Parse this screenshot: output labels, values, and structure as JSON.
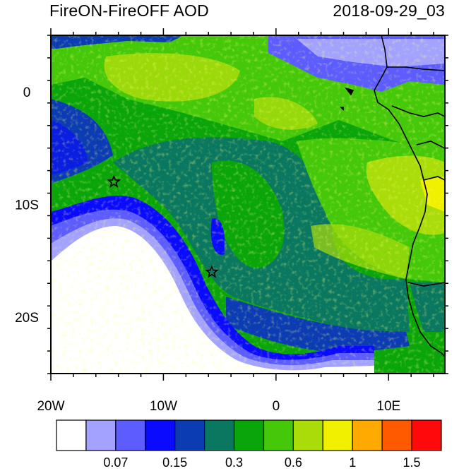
{
  "title": "FireON-FireOFF AOD",
  "datetime": "2018-09-29_03",
  "axes": {
    "x_ticks": [
      {
        "label": "20W",
        "lon": -20
      },
      {
        "label": "10W",
        "lon": -10
      },
      {
        "label": "0",
        "lon": 0
      },
      {
        "label": "10E",
        "lon": 10
      }
    ],
    "y_ticks": [
      {
        "label": "0",
        "lat": 0
      },
      {
        "label": "10S",
        "lat": -10
      },
      {
        "label": "20S",
        "lat": -20
      }
    ],
    "lon_range": [
      -20,
      15
    ],
    "lat_range": [
      -25,
      5
    ]
  },
  "markers": [
    {
      "name": "star",
      "lon": -14.4,
      "lat": -8.0
    },
    {
      "name": "star",
      "lon": -5.7,
      "lat": -16.0
    }
  ],
  "colorbar": {
    "colors": [
      "#ffffff",
      "#a3a3ff",
      "#5c5cff",
      "#0a0aff",
      "#0b3cb4",
      "#0a7860",
      "#0aa50a",
      "#46c80a",
      "#aadc0a",
      "#f0f000",
      "#ffaa00",
      "#ff5a00",
      "#ff0a0a"
    ],
    "labels": [
      {
        "text": "0.07",
        "boundary": 2
      },
      {
        "text": "0.15",
        "boundary": 4
      },
      {
        "text": "0.3",
        "boundary": 6
      },
      {
        "text": "0.6",
        "boundary": 8
      },
      {
        "text": "1",
        "boundary": 10
      },
      {
        "text": "1.5",
        "boundary": 12
      }
    ]
  }
}
